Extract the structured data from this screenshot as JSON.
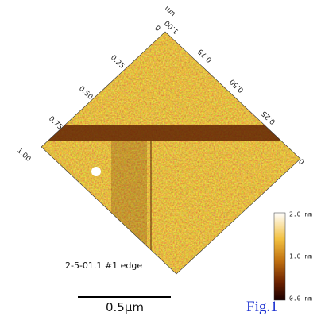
{
  "left_axis": {
    "labels": [
      "1.00",
      "0.75",
      "0.50",
      "0.25",
      "0"
    ]
  },
  "right_axis": {
    "labels": [
      "1.00",
      "0.75",
      "0.50",
      "0.25",
      "0"
    ],
    "unit": "um"
  },
  "colorbar": {
    "labels": [
      "2.0 nm",
      "1.0 nm",
      "0.0 nm"
    ]
  },
  "caption": "2-5-01.1 #1 edge",
  "scale_bar": "0.5µm",
  "figure_label": "Fig.1"
}
